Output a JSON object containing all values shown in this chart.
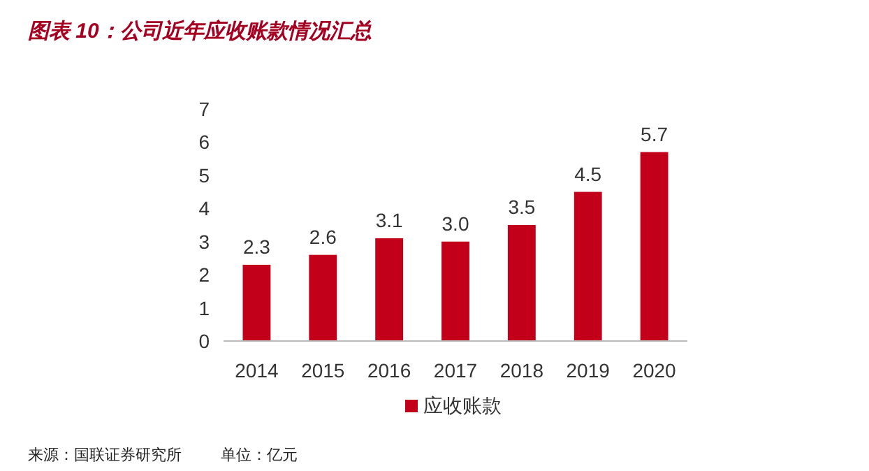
{
  "chart_data": {
    "type": "bar",
    "title": "图表 10：公司近年应收账款情况汇总",
    "categories": [
      "2014",
      "2015",
      "2016",
      "2017",
      "2018",
      "2019",
      "2020"
    ],
    "series": [
      {
        "name": "应收账款",
        "color": "#c3001a",
        "values": [
          2.3,
          2.6,
          3.1,
          3.0,
          3.5,
          4.5,
          5.7
        ],
        "value_labels": [
          "2.3",
          "2.6",
          "3.1",
          "3.0",
          "3.5",
          "4.5",
          "5.7"
        ]
      }
    ],
    "ylim": [
      0,
      7
    ],
    "yticks": [
      0,
      1,
      2,
      3,
      4,
      5,
      6,
      7
    ],
    "grid": false,
    "legend": "bottom",
    "annotations": [
      "来源：国联证券研究所",
      "单位：亿元"
    ]
  }
}
